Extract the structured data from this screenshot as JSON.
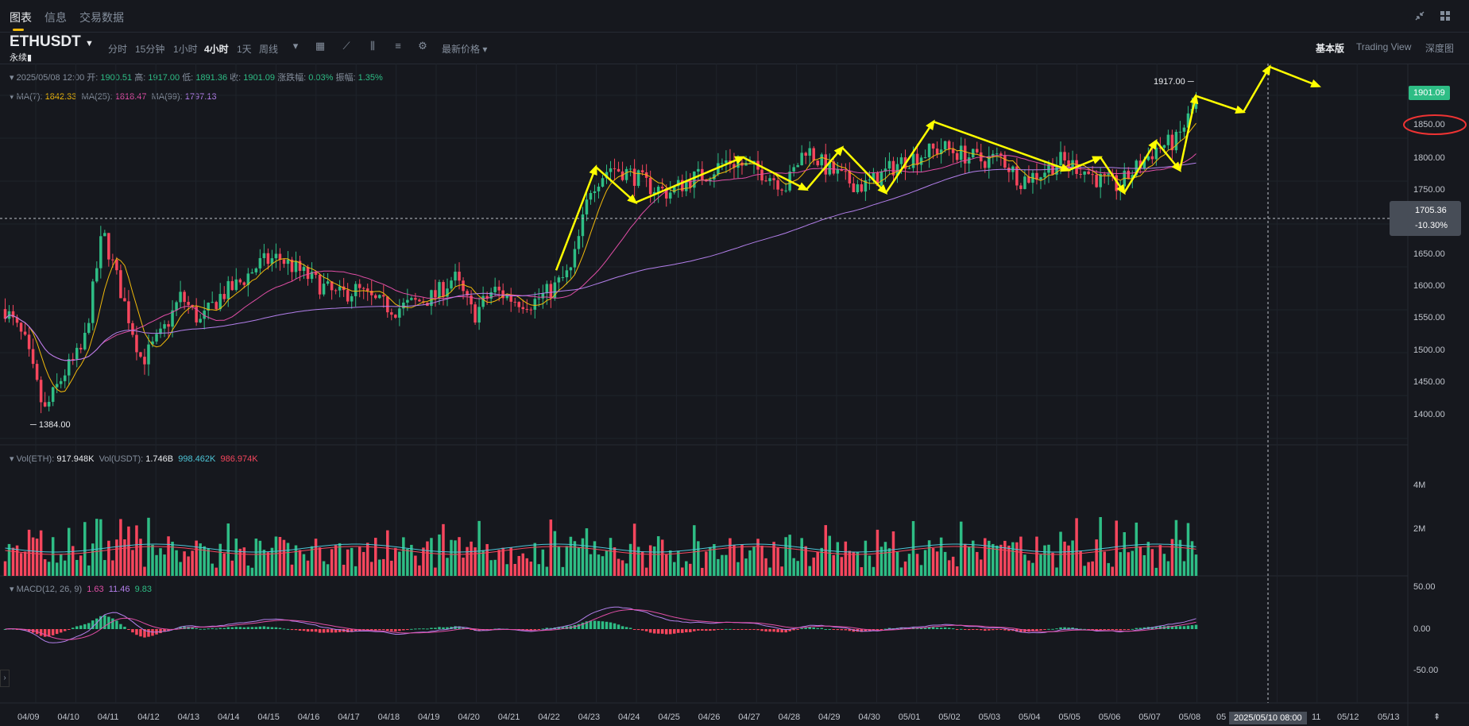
{
  "tabs": [
    {
      "label": "图表",
      "active": true
    },
    {
      "label": "信息",
      "active": false
    },
    {
      "label": "交易数据",
      "active": false
    }
  ],
  "symbol": "ETHUSDT",
  "contract_type": "永续",
  "timeframes": [
    {
      "label": "分时",
      "active": false
    },
    {
      "label": "15分钟",
      "active": false
    },
    {
      "label": "1小时",
      "active": false
    },
    {
      "label": "4小时",
      "active": true
    },
    {
      "label": "1天",
      "active": false
    },
    {
      "label": "周线",
      "active": false
    }
  ],
  "price_type_select": "最新价格",
  "views": [
    {
      "label": "基本版",
      "active": true
    },
    {
      "label": "Trading View",
      "active": false
    },
    {
      "label": "深度图",
      "active": false
    }
  ],
  "ohlc": {
    "date": "2025/05/08 12:00",
    "open_label": "开:",
    "open": "1900.51",
    "high_label": "高:",
    "high": "1917.00",
    "low_label": "低:",
    "low": "1891.36",
    "close_label": "收:",
    "close": "1901.09",
    "change_label": "涨跌幅:",
    "change": "0.03%",
    "amp_label": "振幅:",
    "amp": "1.35%"
  },
  "ma": {
    "ma7_label": "MA(7):",
    "ma7": "1842.33",
    "ma25_label": "MA(25):",
    "ma25": "1818.47",
    "ma99_label": "MA(99):",
    "ma99": "1797.13"
  },
  "vol": {
    "eth_label": "Vol(ETH):",
    "eth": "917.948K",
    "usdt_label": "Vol(USDT):",
    "usdt": "1.746B",
    "ma1": "998.462K",
    "ma2": "986.974K"
  },
  "macd": {
    "label": "MACD(12, 26, 9)",
    "macd": "1.63",
    "dif": "11.46",
    "dea": "9.83"
  },
  "price_axis": [
    "1850.00",
    "1800.00",
    "1750.00",
    "1650.00",
    "1600.00",
    "1550.00",
    "1500.00",
    "1450.00",
    "1400.00"
  ],
  "current_price": "1901.09",
  "crosshair_price": "1705.36",
  "crosshair_pct": "-10.30%",
  "high_marker": "1917.00",
  "low_marker": "1384.00",
  "vol_axis": [
    "4M",
    "2M"
  ],
  "macd_axis": [
    "50.00",
    "0.00",
    "-50.00"
  ],
  "date_axis": [
    "04/09",
    "04/10",
    "04/11",
    "04/12",
    "04/13",
    "04/14",
    "04/15",
    "04/16",
    "04/17",
    "04/18",
    "04/19",
    "04/20",
    "04/21",
    "04/22",
    "04/23",
    "04/24",
    "04/25",
    "04/26",
    "04/27",
    "04/28",
    "04/29",
    "04/30",
    "05/01",
    "05/02",
    "05/03",
    "05/04",
    "05/05",
    "05/06",
    "05/07",
    "05/08",
    "05",
    "11",
    "05/12",
    "05/13"
  ],
  "crosshair_date": "2025/05/10 08:00",
  "colors": {
    "up": "#2ebd85",
    "down": "#f6465d",
    "ma7": "#f0b90b",
    "ma25": "#e04ea6",
    "ma99": "#b37feb",
    "annotation": "#ffff00"
  },
  "chart_data": {
    "type": "candlestick",
    "pair": "ETHUSDT",
    "interval": "4小时",
    "ylim": [
      1370,
      1960
    ],
    "closes_path": [
      1580,
      1530,
      1420,
      1480,
      1520,
      1700,
      1600,
      1500,
      1540,
      1600,
      1560,
      1600,
      1620,
      1650,
      1660,
      1640,
      1620,
      1600,
      1610,
      1590,
      1580,
      1590,
      1600,
      1630,
      1570,
      1610,
      1595,
      1590,
      1610,
      1640,
      1770,
      1800,
      1790,
      1770,
      1760,
      1780,
      1790,
      1810,
      1800,
      1790,
      1770,
      1830,
      1800,
      1780,
      1770,
      1790,
      1810,
      1820,
      1830,
      1820,
      1810,
      1815,
      1780,
      1790,
      1810,
      1800,
      1780,
      1770,
      1800,
      1830,
      1840,
      1900
    ],
    "markers": {
      "high": 1917.0,
      "low": 1384.0
    },
    "annotations": "yellow hand-drawn arrows tracing zig-zag trend from 04/22 to 05/08 with projection upward"
  }
}
